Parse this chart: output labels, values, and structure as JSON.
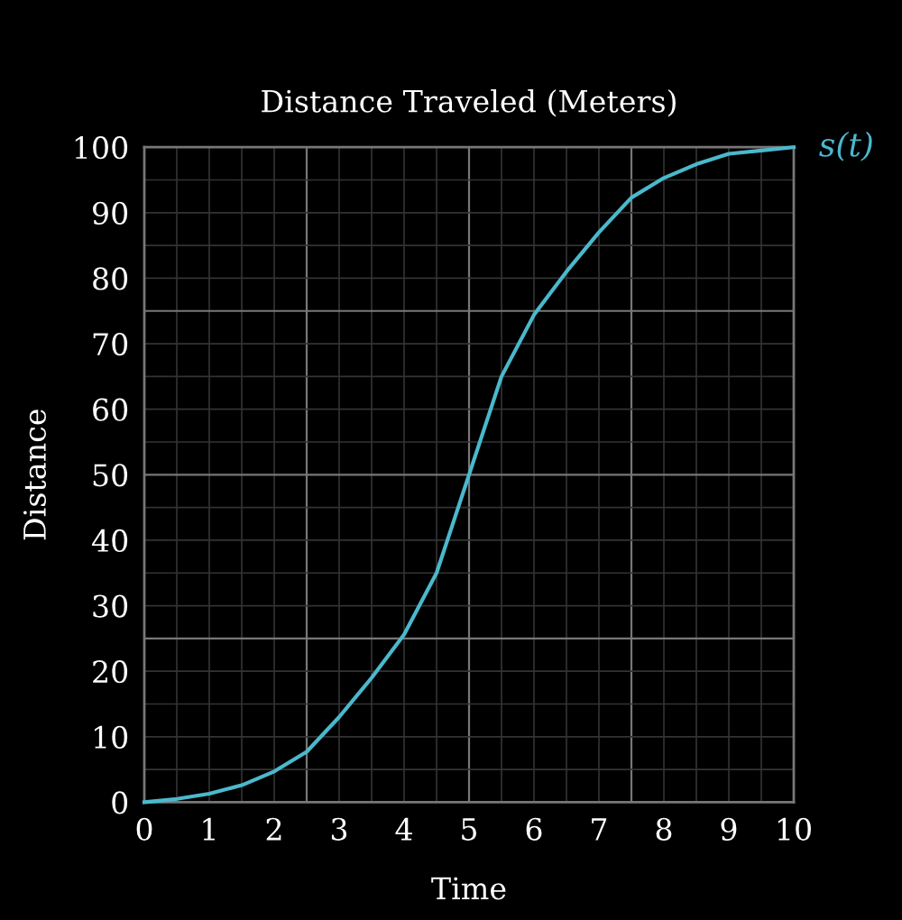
{
  "chart_data": {
    "type": "line",
    "title": "Distance Traveled (Meters)",
    "xlabel": "Time",
    "ylabel": "Distance",
    "series": [
      {
        "name": "s(t)",
        "color": "#4bb8cc",
        "x": [
          0,
          0.5,
          1,
          1.5,
          2,
          2.5,
          3,
          3.5,
          4,
          4.5,
          5,
          5.5,
          6,
          6.5,
          7,
          7.5,
          8,
          8.5,
          9,
          9.5,
          10
        ],
        "values": [
          0,
          0.5,
          1.3,
          2.6,
          4.7,
          7.7,
          13,
          19,
          25.6,
          35,
          50,
          65,
          74.4,
          81,
          87,
          92.3,
          95.3,
          97.4,
          99,
          99.5,
          100
        ]
      }
    ],
    "xlim": [
      0,
      10
    ],
    "ylim": [
      0,
      100
    ],
    "xticks": [
      0,
      1,
      2,
      3,
      4,
      5,
      6,
      7,
      8,
      9,
      10
    ],
    "yticks": [
      0,
      10,
      20,
      30,
      40,
      50,
      60,
      70,
      80,
      90,
      100
    ],
    "grid": true,
    "marker": "none",
    "line_style": "solid"
  }
}
